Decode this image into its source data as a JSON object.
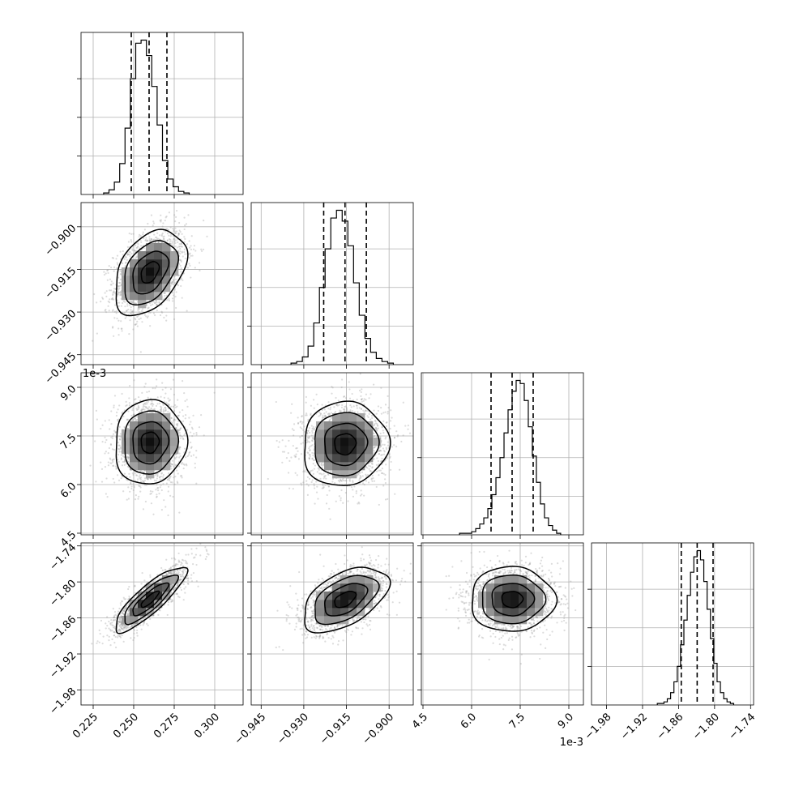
{
  "chart_data": {
    "type": "corner",
    "title": "",
    "grid": true,
    "offset_label": "1e-3",
    "parameters": [
      {
        "range": [
          0.2175,
          0.3175
        ],
        "ticks": [
          0.225,
          0.25,
          0.275,
          0.3
        ],
        "tick_labels": [
          "0.225",
          "0.250",
          "0.275",
          "0.300"
        ]
      },
      {
        "range": [
          -0.9485,
          -0.8915
        ],
        "ticks": [
          -0.945,
          -0.93,
          -0.915,
          -0.9
        ],
        "tick_labels": [
          "−0.945",
          "−0.930",
          "−0.915",
          "−0.900"
        ]
      },
      {
        "range": [
          4.45,
          9.45
        ],
        "ticks": [
          4.5,
          6.0,
          7.5,
          9.0
        ],
        "tick_labels": [
          "4.5",
          "6.0",
          "7.5",
          "9.0"
        ]
      },
      {
        "range": [
          -2.005,
          -1.735
        ],
        "ticks": [
          -1.98,
          -1.92,
          -1.86,
          -1.8,
          -1.74
        ],
        "tick_labels": [
          "−1.98",
          "−1.92",
          "−1.86",
          "−1.80",
          "−1.74"
        ]
      }
    ],
    "quantiles": [
      [
        0.2485,
        0.2595,
        0.2705
      ],
      [
        -0.923,
        -0.9155,
        -0.908
      ],
      [
        6.6,
        7.25,
        7.9
      ],
      [
        -1.8555,
        -1.829,
        -1.8025
      ]
    ],
    "histograms": [
      {
        "values": [
          1,
          3,
          8,
          20,
          43,
          75,
          98,
          100,
          90,
          70,
          45,
          22,
          10,
          5,
          2,
          1
        ]
      },
      {
        "values": [
          1,
          2,
          5,
          12,
          27,
          50,
          75,
          95,
          100,
          93,
          77,
          53,
          32,
          17,
          8,
          4,
          2,
          1
        ]
      },
      {
        "values": [
          1,
          1,
          1,
          2,
          4,
          7,
          11,
          17,
          26,
          37,
          50,
          66,
          81,
          93,
          100,
          98,
          87,
          70,
          51,
          34,
          20,
          11,
          6,
          3,
          1
        ]
      },
      {
        "values": [
          1,
          1,
          2,
          4,
          8,
          15,
          25,
          39,
          55,
          71,
          86,
          96,
          100,
          94,
          80,
          62,
          43,
          27,
          15,
          8,
          4,
          2,
          1
        ]
      }
    ],
    "pairs": [
      {
        "x": 0,
        "y": 1,
        "mean": [
          0.26,
          -0.916
        ],
        "sd": [
          0.011,
          0.0075
        ],
        "rho": 0.4
      },
      {
        "x": 0,
        "y": 2,
        "mean": [
          0.26,
          7.3
        ],
        "sd": [
          0.011,
          0.65
        ],
        "rho": 0.05
      },
      {
        "x": 1,
        "y": 2,
        "mean": [
          -0.9155,
          7.25
        ],
        "sd": [
          0.0075,
          0.65
        ],
        "rho": 0.05
      },
      {
        "x": 0,
        "y": 3,
        "mean": [
          0.26,
          -1.829
        ],
        "sd": [
          0.011,
          0.027
        ],
        "rho": 0.85
      },
      {
        "x": 1,
        "y": 3,
        "mean": [
          -0.9155,
          -1.829
        ],
        "sd": [
          0.0075,
          0.027
        ],
        "rho": 0.5
      },
      {
        "x": 2,
        "y": 3,
        "mean": [
          7.25,
          -1.829
        ],
        "sd": [
          0.65,
          0.027
        ],
        "rho": 0.0
      }
    ]
  }
}
